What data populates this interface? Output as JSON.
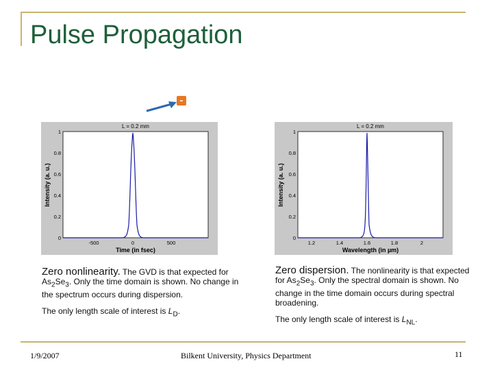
{
  "slide": {
    "title": "Pulse Propagation",
    "slider_label": "-"
  },
  "plots": [
    {
      "title": "L = 0.2  mm",
      "xlabel": "Time (in fsec)",
      "ylabel": "Intensity (a. u.)",
      "xticks": [
        "-500",
        "0",
        "500"
      ],
      "yticks": [
        "0",
        "0.2",
        "0.4",
        "0.6",
        "0.8",
        "1"
      ]
    },
    {
      "title": "L = 0.2  mm",
      "xlabel": "Wavelength (in µm)",
      "ylabel": "Intensity (a. u.)",
      "xticks": [
        "1.2",
        "1.4",
        "1.6",
        "1.8",
        "2"
      ],
      "yticks": [
        "0",
        "0.2",
        "0.4",
        "0.6",
        "0.8",
        "1"
      ]
    }
  ],
  "left_caption": {
    "lead": "Zero nonlinearity.",
    "text1": " The GVD is that expected for As",
    "sub1": "2",
    "text2": "Se",
    "sub2": "3",
    "text3": ". Only the time domain is shown. No change in the spectrum occurs during dispersion.",
    "scale_text": "The only length scale of interest is ",
    "scale_var": "L",
    "scale_sub": "D",
    "scale_end": "."
  },
  "right_caption": {
    "lead": "Zero dispersion.",
    "text1": " The nonlinearity is that expected for As",
    "sub1": "2",
    "text2": "Se",
    "sub2": "3",
    "text3": ". Only the spectral domain is shown. No change in the time domain occurs during spectral broadening.",
    "scale_text": "The only length scale of interest is ",
    "scale_var": "L",
    "scale_sub": "NL",
    "scale_end": "."
  },
  "footer": {
    "date": "1/9/2007",
    "org": "Bilkent University, Physics Department",
    "page": "11"
  },
  "colors": {
    "title": "#1e5f3a",
    "frame": "#c8b46a",
    "slider": "#e87722",
    "arrow": "#2a6ab0",
    "curve": "#1a1aa8",
    "plot_bg": "#c8c8c8"
  }
}
